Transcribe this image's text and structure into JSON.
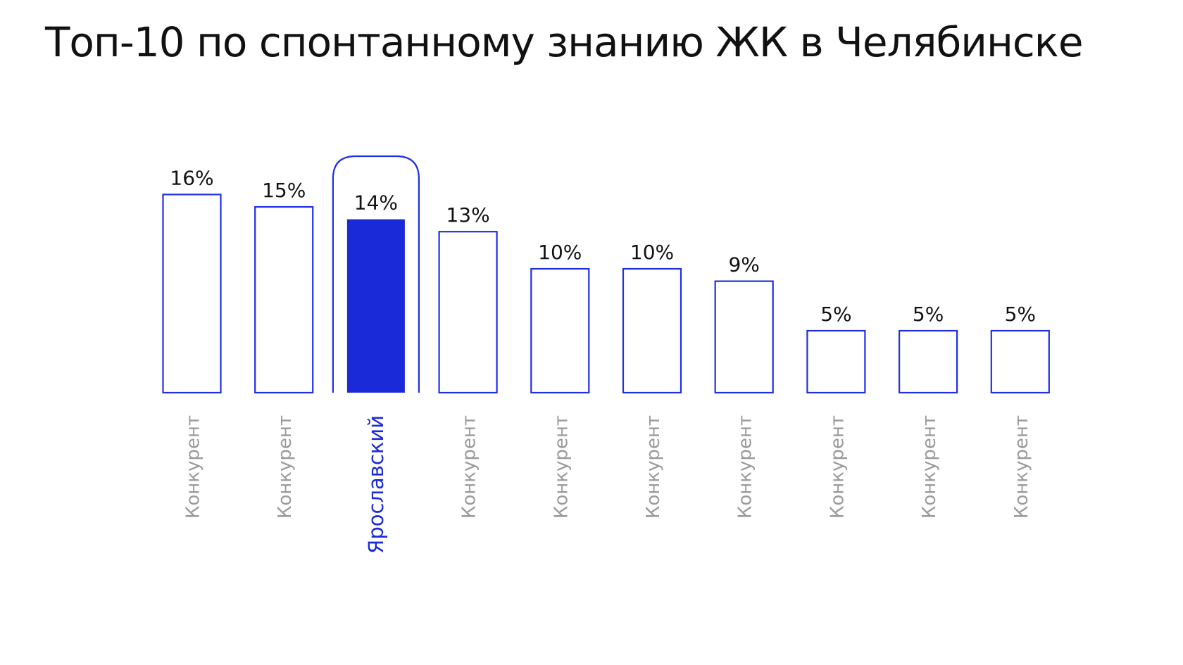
{
  "chart_data": {
    "type": "bar",
    "title": "Топ-10 по спонтанному знанию ЖК в Челябинске",
    "categories": [
      "Конкурент",
      "Конкурент",
      "Ярославский",
      "Конкурент",
      "Конкурент",
      "Конкурент",
      "Конкурент",
      "Конкурент",
      "Конкурент",
      "Конкурент"
    ],
    "values": [
      16,
      15,
      14,
      13,
      10,
      10,
      9,
      5,
      5,
      5
    ],
    "value_labels": [
      "16%",
      "15%",
      "14%",
      "13%",
      "10%",
      "10%",
      "9%",
      "5%",
      "5%",
      "5%"
    ],
    "highlight_index": 2,
    "xlabel": "",
    "ylabel": "",
    "grid": false,
    "colors": {
      "accent": "#1a2ad8",
      "outline": "#1f2fe6",
      "category_text": "#9a9a9a",
      "value_text": "#111111"
    }
  }
}
